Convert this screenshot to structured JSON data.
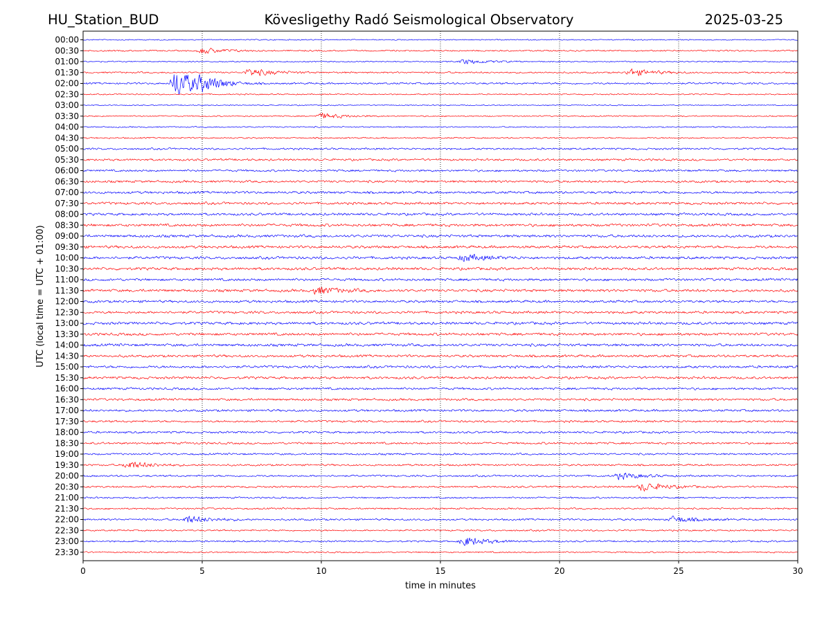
{
  "header": {
    "station": "HU_Station_BUD",
    "observatory": "Kövesligethy Radó Seismological Observatory",
    "date": "2025-03-25"
  },
  "chart_data": {
    "type": "line",
    "chart_kind": "helicorder",
    "title": "Kövesligethy Radó Seismological Observatory",
    "xlabel": "time in minutes",
    "ylabel": "UTC (local time = UTC + 01:00)",
    "xlim": [
      0,
      30
    ],
    "x_ticks": [
      0,
      5,
      10,
      15,
      20,
      25,
      30
    ],
    "grid": "vertical dotted at x ticks",
    "trace_colors": [
      "#0000ff",
      "#ff0000"
    ],
    "row_labels": [
      "00:00",
      "00:30",
      "01:00",
      "01:30",
      "02:00",
      "02:30",
      "03:00",
      "03:30",
      "04:00",
      "04:30",
      "05:00",
      "05:30",
      "06:00",
      "06:30",
      "07:00",
      "07:30",
      "08:00",
      "08:30",
      "09:00",
      "09:30",
      "10:00",
      "10:30",
      "11:00",
      "11:30",
      "12:00",
      "12:30",
      "13:00",
      "13:30",
      "14:00",
      "14:30",
      "15:00",
      "15:30",
      "16:00",
      "16:30",
      "17:00",
      "17:30",
      "18:00",
      "18:30",
      "19:00",
      "19:30",
      "20:00",
      "20:30",
      "21:00",
      "21:30",
      "22:00",
      "22:30",
      "23:00",
      "23:30"
    ],
    "noise_level": [
      0.5,
      0.7,
      0.6,
      0.8,
      0.9,
      0.6,
      0.5,
      0.6,
      0.6,
      0.7,
      0.9,
      1.0,
      1.0,
      1.1,
      1.2,
      1.2,
      1.2,
      1.3,
      1.3,
      1.3,
      1.3,
      1.3,
      1.2,
      1.3,
      1.2,
      1.2,
      1.3,
      1.3,
      1.3,
      1.2,
      1.2,
      1.2,
      1.1,
      1.1,
      1.1,
      1.0,
      1.0,
      1.0,
      0.9,
      0.9,
      0.9,
      0.9,
      0.8,
      0.8,
      0.9,
      0.8,
      0.8,
      0.7
    ],
    "events": [
      {
        "row": "00:30",
        "minute": 5.0,
        "amplitude": 1.2
      },
      {
        "row": "01:00",
        "minute": 16.0,
        "amplitude": 1.0
      },
      {
        "row": "01:30",
        "minute": 7.0,
        "amplitude": 1.6
      },
      {
        "row": "01:30",
        "minute": 23.0,
        "amplitude": 1.5
      },
      {
        "row": "02:00",
        "minute": 3.9,
        "amplitude": 6.0
      },
      {
        "row": "02:00",
        "minute": 5.0,
        "amplitude": 2.0
      },
      {
        "row": "03:30",
        "minute": 10.0,
        "amplitude": 1.2
      },
      {
        "row": "10:00",
        "minute": 16.0,
        "amplitude": 1.4
      },
      {
        "row": "11:30",
        "minute": 9.8,
        "amplitude": 1.5
      },
      {
        "row": "19:30",
        "minute": 1.9,
        "amplitude": 1.6
      },
      {
        "row": "20:00",
        "minute": 22.5,
        "amplitude": 1.3
      },
      {
        "row": "20:30",
        "minute": 23.5,
        "amplitude": 1.8
      },
      {
        "row": "22:00",
        "minute": 4.4,
        "amplitude": 1.5
      },
      {
        "row": "22:00",
        "minute": 24.8,
        "amplitude": 1.3
      },
      {
        "row": "23:00",
        "minute": 16.0,
        "amplitude": 2.0
      }
    ]
  }
}
